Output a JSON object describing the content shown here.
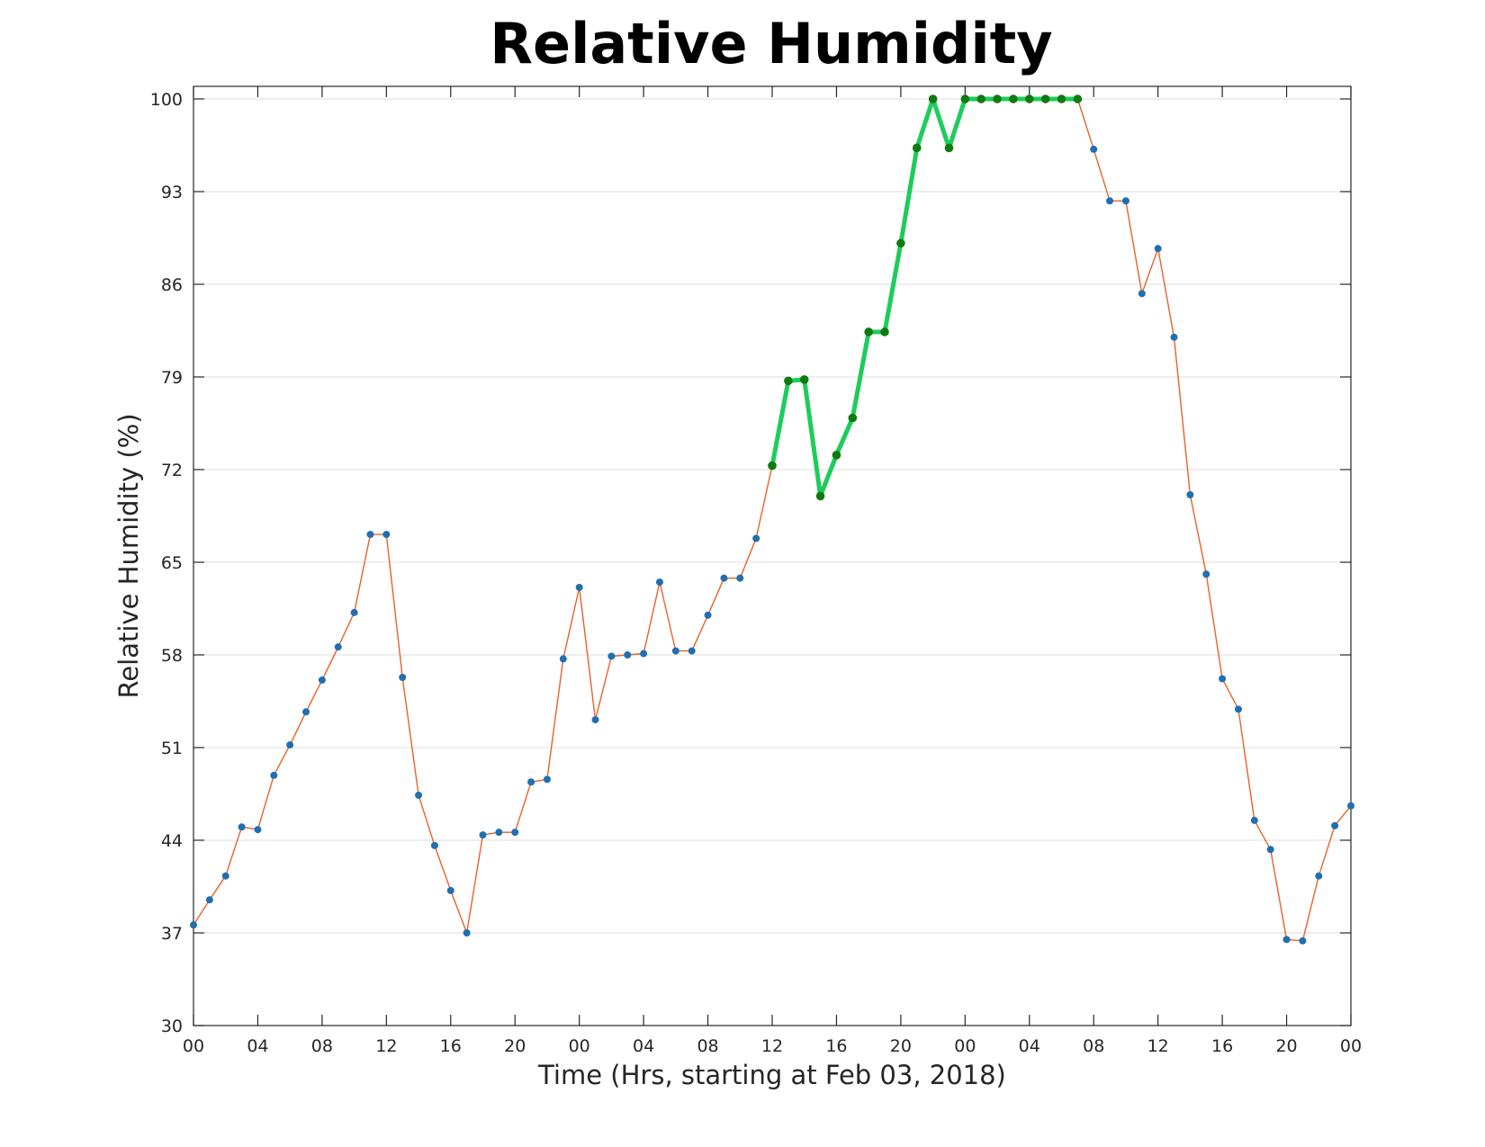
{
  "chart_data": {
    "type": "line",
    "title": "Relative Humidity",
    "xlabel": "Time (Hrs, starting at Feb 03, 2018)",
    "ylabel": "Relative Humidity (%)",
    "ylim": [
      30,
      100
    ],
    "xlim": [
      0,
      72
    ],
    "y_ticks": [
      "30",
      "37",
      "44",
      "51",
      "58",
      "65",
      "72",
      "79",
      "86",
      "93",
      "100"
    ],
    "x_ticks": [
      {
        "x": 0,
        "label": "00"
      },
      {
        "x": 4,
        "label": "04"
      },
      {
        "x": 8,
        "label": "08"
      },
      {
        "x": 12,
        "label": "12"
      },
      {
        "x": 16,
        "label": "16"
      },
      {
        "x": 20,
        "label": "20"
      },
      {
        "x": 24,
        "label": "00"
      },
      {
        "x": 28,
        "label": "04"
      },
      {
        "x": 32,
        "label": "08"
      },
      {
        "x": 36,
        "label": "12"
      },
      {
        "x": 40,
        "label": "16"
      },
      {
        "x": 44,
        "label": "20"
      },
      {
        "x": 48,
        "label": "00"
      },
      {
        "x": 52,
        "label": "04"
      },
      {
        "x": 56,
        "label": "08"
      },
      {
        "x": 60,
        "label": "12"
      },
      {
        "x": 64,
        "label": "16"
      },
      {
        "x": 68,
        "label": "20"
      },
      {
        "x": 72,
        "label": "00"
      }
    ],
    "grid": "horizontal",
    "series": [
      {
        "color": "#e8622a",
        "marker_color": "#1f6fb2",
        "x": [
          0,
          1,
          2,
          3,
          4,
          5,
          6,
          7,
          8,
          9,
          10,
          11,
          12,
          13,
          14,
          15,
          16,
          17,
          18,
          19,
          20,
          21,
          22,
          23,
          24,
          25,
          26,
          27,
          28,
          29,
          30,
          31,
          32,
          33,
          34,
          35,
          36,
          37,
          38,
          39,
          40,
          41,
          42,
          43,
          44,
          45,
          46,
          47,
          48,
          49,
          50,
          51,
          52,
          53,
          54,
          55,
          56,
          57,
          58,
          59,
          60,
          61,
          62,
          63,
          64,
          65,
          66,
          67,
          68,
          69,
          70,
          71,
          72
        ],
        "values": [
          37.6,
          39.5,
          41.3,
          45.0,
          44.8,
          48.9,
          51.2,
          53.7,
          56.1,
          58.6,
          61.2,
          67.1,
          67.1,
          56.3,
          47.4,
          43.6,
          40.2,
          37.0,
          44.4,
          44.6,
          44.6,
          48.4,
          48.6,
          57.7,
          63.1,
          53.1,
          57.9,
          58.0,
          58.1,
          63.5,
          58.3,
          58.3,
          61.0,
          63.8,
          63.8,
          66.8,
          72.3,
          78.7,
          78.8,
          70.0,
          73.1,
          75.9,
          82.4,
          82.4,
          89.1,
          96.3,
          100,
          96.3,
          100,
          100,
          100,
          100,
          100,
          100,
          100,
          100,
          96.2,
          92.3,
          92.3,
          85.3,
          88.7,
          82.0,
          70.1,
          64.1,
          56.2,
          53.9,
          45.5,
          43.3,
          36.5,
          36.4,
          41.3,
          45.1,
          46.6
        ]
      },
      {
        "color": "#1ecc5c",
        "marker_color": "#0f7a10",
        "x": [
          36,
          37,
          38,
          39,
          40,
          41,
          42,
          43,
          44,
          45,
          46,
          47,
          48,
          49,
          50,
          51,
          52,
          53,
          54,
          55
        ],
        "values": [
          72.3,
          78.7,
          78.8,
          70.0,
          73.1,
          75.9,
          82.4,
          82.4,
          89.1,
          96.3,
          100,
          96.3,
          100,
          100,
          100,
          100,
          100,
          100,
          100,
          100
        ]
      }
    ]
  }
}
